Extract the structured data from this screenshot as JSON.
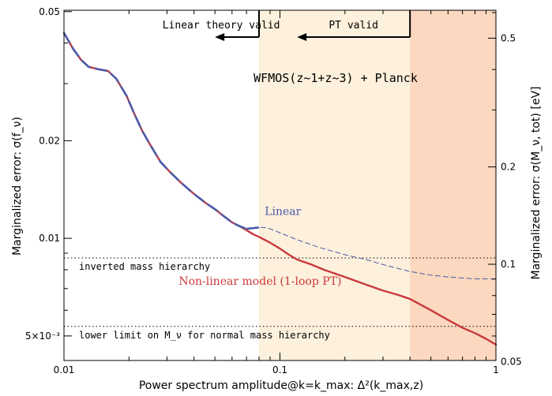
{
  "chart_data": {
    "type": "line",
    "xlabel": "Power spectrum amplitude@k=k_max: Δ²(k_max,z)",
    "ylabel_left": "Marginalized error: σ(f_ν)",
    "ylabel_right": "Marginalized error: σ(M_ν, tot) [eV]",
    "x_scale": "log",
    "y_scale": "log",
    "xlim": [
      0.01,
      1
    ],
    "ylim": [
      0.0042,
      0.0505
    ],
    "ylim_right": [
      0.0504,
      0.61
    ],
    "x_ticks": [
      {
        "value": 0.01,
        "label": "0.01"
      },
      {
        "value": 0.1,
        "label": "0.1"
      },
      {
        "value": 1,
        "label": "1"
      }
    ],
    "y_ticks_left": [
      {
        "value": 0.05,
        "label": "0.05"
      },
      {
        "value": 0.02,
        "label": "0.02"
      },
      {
        "value": 0.01,
        "label": "0.01"
      },
      {
        "value": 0.005,
        "label": "5×10⁻³"
      }
    ],
    "y_ticks_right": [
      {
        "value": 0.5,
        "label": "0.5"
      },
      {
        "value": 0.2,
        "label": "0.2"
      },
      {
        "value": 0.1,
        "label": "0.1"
      },
      {
        "value": 0.05,
        "label": "0.05"
      }
    ],
    "regions": [
      {
        "from": 0.08,
        "to": 0.4,
        "color": "#fdf0dc"
      },
      {
        "from": 0.4,
        "to": 1.0,
        "color": "#fbd8bf"
      }
    ],
    "arrows": [
      {
        "label": "Linear theory valid",
        "from": 0.08,
        "to": 0.05
      },
      {
        "label": "PT valid",
        "from": 0.4,
        "to": 0.12
      }
    ],
    "title_annotation": "WFMOS(z~1+z~3) + Planck",
    "reference_lines": [
      {
        "label": "inverted mass hierarchy",
        "y": 0.0087
      },
      {
        "label": "lower limit on M_ν for normal mass hierarchy",
        "y": 0.00535
      }
    ],
    "series": [
      {
        "name": "Linear",
        "color": "#4a5aa8",
        "style": "dashed",
        "x": [
          0.01,
          0.011,
          0.012,
          0.013,
          0.0145,
          0.016,
          0.0175,
          0.0195,
          0.021,
          0.023,
          0.025,
          0.028,
          0.031,
          0.035,
          0.04,
          0.045,
          0.05,
          0.055,
          0.06,
          0.065,
          0.07,
          0.075,
          0.08,
          0.085,
          0.09,
          0.1,
          0.12,
          0.15,
          0.2,
          0.25,
          0.3,
          0.4,
          0.5,
          0.6,
          0.8,
          1.0
        ],
        "y": [
          0.043,
          0.0385,
          0.0355,
          0.0338,
          0.0332,
          0.0328,
          0.031,
          0.0275,
          0.0245,
          0.0215,
          0.0195,
          0.0172,
          0.016,
          0.0148,
          0.0137,
          0.0129,
          0.0123,
          0.0117,
          0.0112,
          0.0109,
          0.0107,
          0.0107,
          0.0108,
          0.0108,
          0.0107,
          0.0104,
          0.0099,
          0.0094,
          0.0089,
          0.0086,
          0.0083,
          0.0079,
          0.0077,
          0.0076,
          0.0075,
          0.0075
        ]
      },
      {
        "name": "Non-linear model (1-loop PT)",
        "color": "#c9393b",
        "style": "solid",
        "x": [
          0.01,
          0.011,
          0.012,
          0.013,
          0.0145,
          0.016,
          0.0175,
          0.0195,
          0.021,
          0.023,
          0.025,
          0.028,
          0.031,
          0.035,
          0.04,
          0.045,
          0.05,
          0.055,
          0.06,
          0.065,
          0.07,
          0.075,
          0.08,
          0.09,
          0.1,
          0.11,
          0.12,
          0.14,
          0.16,
          0.2,
          0.25,
          0.3,
          0.35,
          0.4,
          0.5,
          0.6,
          0.7,
          0.8,
          0.9,
          1.0
        ],
        "y": [
          0.043,
          0.0385,
          0.0355,
          0.0338,
          0.0332,
          0.0328,
          0.031,
          0.0275,
          0.0245,
          0.0215,
          0.0195,
          0.0172,
          0.016,
          0.0148,
          0.0137,
          0.0129,
          0.0123,
          0.0117,
          0.0112,
          0.0109,
          0.0106,
          0.0103,
          0.0101,
          0.0097,
          0.0093,
          0.0089,
          0.0086,
          0.0083,
          0.008,
          0.0076,
          0.0072,
          0.0069,
          0.0067,
          0.0065,
          0.006,
          0.0056,
          0.0053,
          0.0051,
          0.0049,
          0.0047
        ]
      }
    ],
    "series_labels": [
      {
        "text": "Linear",
        "x": 0.085,
        "y": 0.0118,
        "color": "#4a5aa8"
      },
      {
        "text": "Non-linear model (1-loop PT)",
        "x": 0.034,
        "y": 0.0072,
        "color": "#c9393b"
      }
    ]
  }
}
